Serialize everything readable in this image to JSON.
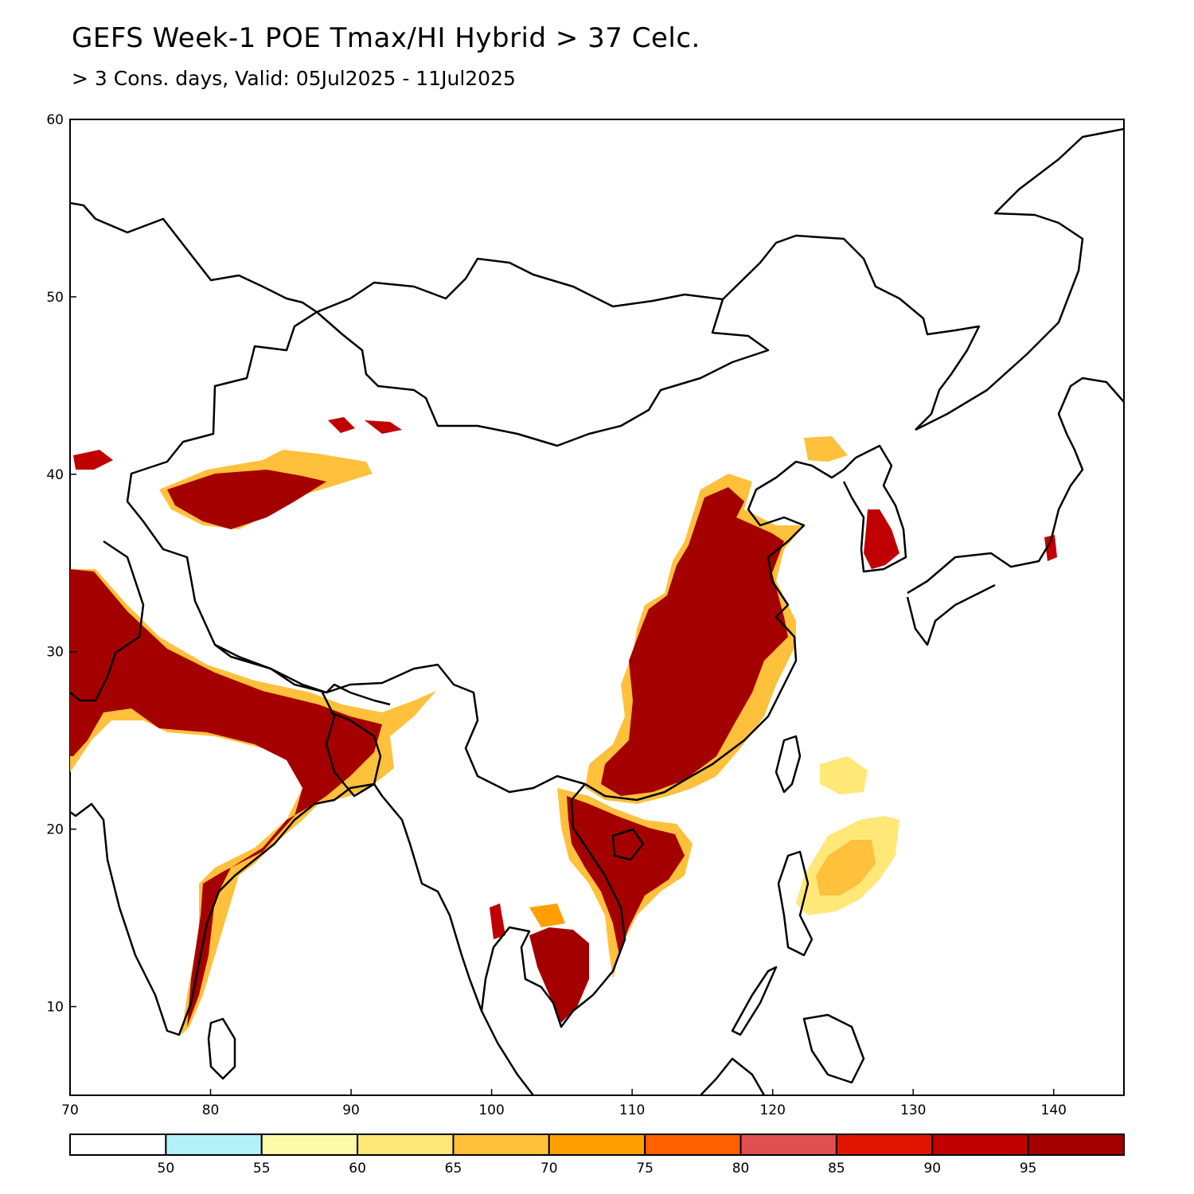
{
  "title": "GEFS Week-1 POE Tmax/HI Hybrid > 37 Celc.",
  "subtitle": "> 3 Cons. days, Valid: 05Jul2025 - 11Jul2025",
  "axes": {
    "lon_ticks": [
      "70",
      "80",
      "90",
      "100",
      "110",
      "120",
      "130",
      "140"
    ],
    "lat_ticks": [
      "60",
      "50",
      "40",
      "30",
      "20",
      "10"
    ],
    "lon_range": [
      70,
      145
    ],
    "lat_range": [
      5,
      60
    ]
  },
  "legend": {
    "colors": [
      "#ffffff",
      "#b4f0f8",
      "#fffaaa",
      "#ffe878",
      "#ffc03c",
      "#ffa000",
      "#ff6000",
      "#e15050",
      "#e11400",
      "#c00000",
      "#a50000"
    ],
    "labels": [
      "50",
      "55",
      "60",
      "65",
      "70",
      "75",
      "80",
      "85",
      "90",
      "95"
    ]
  }
}
